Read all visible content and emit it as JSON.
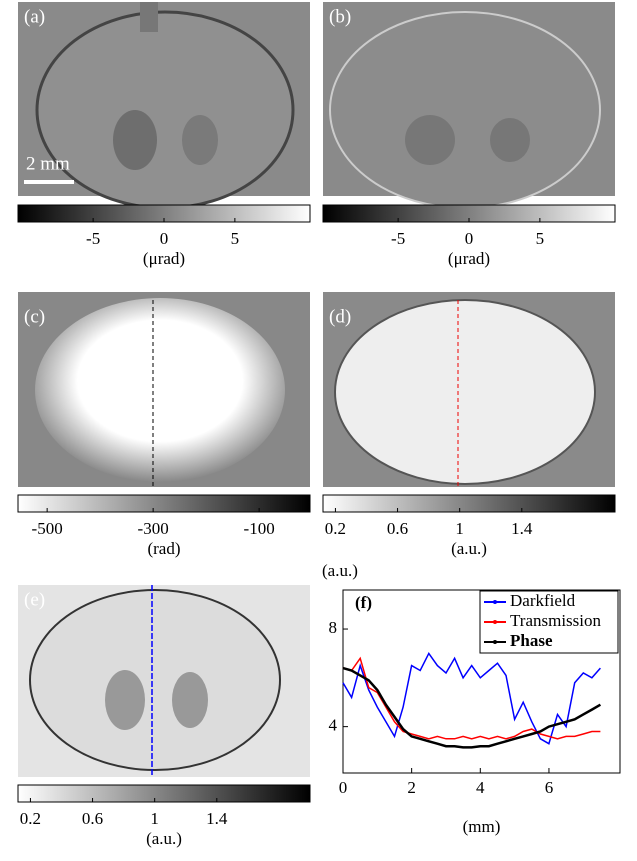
{
  "panels": [
    "(a)",
    "(b)",
    "(c)",
    "(d)",
    "(e)",
    "(f)"
  ],
  "scale_bar": "2 mm",
  "colorbars": [
    {
      "lim": [
        -10.3,
        10.3
      ],
      "ticks": [
        -5,
        0,
        5
      ],
      "unit": "(μrad)",
      "dark_at": "low"
    },
    {
      "lim": [
        -10.3,
        10.3
      ],
      "ticks": [
        -5,
        0,
        5
      ],
      "unit": "(μrad)",
      "dark_at": "low"
    },
    {
      "lim": [
        -555,
        -4
      ],
      "ticks": [
        -500,
        -300,
        -100
      ],
      "unit": "(rad)",
      "dark_at": "high"
    },
    {
      "lim": [
        0.12,
        2.0
      ],
      "ticks": [
        0.2,
        0.6,
        1,
        1.4
      ],
      "unit": "(a.u.)",
      "dark_at": "high"
    },
    {
      "lim": [
        0.12,
        2.0
      ],
      "ticks": [
        0.2,
        0.6,
        1,
        1.4
      ],
      "unit": "(a.u.)",
      "dark_at": "high"
    }
  ],
  "chart_data": {
    "type": "line",
    "y_label": "(a.u.)",
    "x_label": "(mm)",
    "x": [
      0,
      0.25,
      0.5,
      0.75,
      1,
      1.25,
      1.5,
      1.75,
      2,
      2.25,
      2.5,
      2.75,
      3,
      3.25,
      3.5,
      3.75,
      4,
      4.25,
      4.5,
      4.75,
      5,
      5.25,
      5.5,
      5.75,
      6,
      6.25,
      6.5,
      6.75,
      7,
      7.25,
      7.5
    ],
    "xlim": [
      0,
      8.07
    ],
    "xticks": [
      0,
      2,
      4,
      6
    ],
    "ylim": [
      2.1,
      9.6
    ],
    "yticks": [
      4,
      8
    ],
    "legend": "upper right",
    "series": [
      {
        "name": "Darkfield",
        "color": "#0000ff",
        "values": [
          5.8,
          5.2,
          6.5,
          5.5,
          4.8,
          4.2,
          3.6,
          4.8,
          6.5,
          6.3,
          7,
          6.5,
          6.2,
          6.8,
          6.0,
          6.5,
          6.0,
          6.3,
          6.6,
          6.1,
          4.3,
          5.0,
          4.2,
          3.5,
          3.3,
          4.5,
          4.0,
          5.8,
          6.2,
          6.0,
          6.4
        ]
      },
      {
        "name": "Transmission",
        "color": "#ff0000",
        "values": [
          6.4,
          6.3,
          6.8,
          5.6,
          5.4,
          4.8,
          4.2,
          3.8,
          3.7,
          3.6,
          3.5,
          3.6,
          3.5,
          3.5,
          3.6,
          3.5,
          3.6,
          3.5,
          3.6,
          3.5,
          3.6,
          3.8,
          3.9,
          3.7,
          3.6,
          3.5,
          3.6,
          3.6,
          3.7,
          3.8,
          3.8
        ]
      },
      {
        "name": "Phase",
        "color": "#000000",
        "values": [
          6.4,
          6.3,
          6.1,
          5.9,
          5.5,
          4.9,
          4.4,
          3.9,
          3.6,
          3.5,
          3.4,
          3.3,
          3.2,
          3.2,
          3.15,
          3.15,
          3.2,
          3.2,
          3.3,
          3.4,
          3.5,
          3.6,
          3.7,
          3.8,
          4.0,
          4.1,
          4.2,
          4.3,
          4.5,
          4.7,
          4.9
        ]
      }
    ]
  }
}
